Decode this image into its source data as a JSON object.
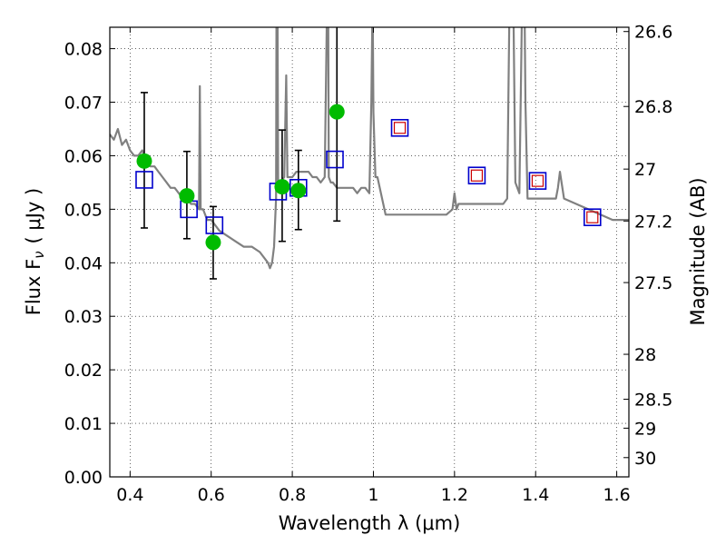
{
  "chart_data": {
    "type": "scatter",
    "xlabel": "Wavelength  λ (μm)",
    "ylabel": "Flux  F",
    "ylabel_sub": "ν",
    "ylabel_unit": "( μJy )",
    "y2label": "Magnitude (AB)",
    "xlim": [
      0.35,
      1.63
    ],
    "ylim": [
      0.0,
      0.084
    ],
    "grid": true,
    "x_ticks": [
      {
        "value": 0.4,
        "label": "0.4"
      },
      {
        "value": 0.6,
        "label": "0.6"
      },
      {
        "value": 0.8,
        "label": "0.8"
      },
      {
        "value": 1.0,
        "label": "1"
      },
      {
        "value": 1.2,
        "label": "1.2"
      },
      {
        "value": 1.4,
        "label": "1.4"
      },
      {
        "value": 1.6,
        "label": "1.6"
      }
    ],
    "y_ticks": [
      {
        "value": 0.0,
        "label": "0.00"
      },
      {
        "value": 0.01,
        "label": "0.01"
      },
      {
        "value": 0.02,
        "label": "0.02"
      },
      {
        "value": 0.03,
        "label": "0.03"
      },
      {
        "value": 0.04,
        "label": "0.04"
      },
      {
        "value": 0.05,
        "label": "0.05"
      },
      {
        "value": 0.06,
        "label": "0.06"
      },
      {
        "value": 0.07,
        "label": "0.07"
      },
      {
        "value": 0.08,
        "label": "0.08"
      }
    ],
    "y2_ticks": [
      {
        "flux": 0.0832,
        "label": "26.6"
      },
      {
        "flux": 0.0692,
        "label": "26.8"
      },
      {
        "flux": 0.0575,
        "label": "27"
      },
      {
        "flux": 0.0478,
        "label": "27.2"
      },
      {
        "flux": 0.0363,
        "label": "27.5"
      },
      {
        "flux": 0.0229,
        "label": "28"
      },
      {
        "flux": 0.0145,
        "label": "28.5"
      },
      {
        "flux": 0.0091,
        "label": "29"
      },
      {
        "flux": 0.0036,
        "label": "30"
      }
    ],
    "series": [
      {
        "kind": "model_spectrum",
        "color": "#808080",
        "x": [
          0.35,
          0.36,
          0.37,
          0.38,
          0.39,
          0.4,
          0.41,
          0.42,
          0.43,
          0.44,
          0.45,
          0.46,
          0.47,
          0.48,
          0.49,
          0.5,
          0.51,
          0.52,
          0.53,
          0.54,
          0.55,
          0.56,
          0.57,
          0.572,
          0.574,
          0.58,
          0.59,
          0.6,
          0.62,
          0.64,
          0.66,
          0.68,
          0.7,
          0.72,
          0.74,
          0.745,
          0.75,
          0.755,
          0.76,
          0.762,
          0.765,
          0.768,
          0.77,
          0.78,
          0.785,
          0.788,
          0.79,
          0.8,
          0.81,
          0.82,
          0.83,
          0.84,
          0.85,
          0.86,
          0.87,
          0.88,
          0.885,
          0.888,
          0.89,
          0.895,
          0.9,
          0.91,
          0.92,
          0.93,
          0.94,
          0.95,
          0.96,
          0.97,
          0.98,
          0.99,
          0.995,
          0.998,
          1.0,
          1.005,
          1.01,
          1.03,
          1.05,
          1.07,
          1.1,
          1.12,
          1.15,
          1.18,
          1.195,
          1.2,
          1.205,
          1.21,
          1.23,
          1.26,
          1.29,
          1.32,
          1.33,
          1.335,
          1.34,
          1.345,
          1.35,
          1.36,
          1.365,
          1.37,
          1.375,
          1.38,
          1.4,
          1.43,
          1.45,
          1.455,
          1.46,
          1.47,
          1.5,
          1.53,
          1.56,
          1.59,
          1.62,
          1.63
        ],
        "y": [
          0.064,
          0.063,
          0.065,
          0.062,
          0.063,
          0.061,
          0.06,
          0.06,
          0.061,
          0.059,
          0.058,
          0.058,
          0.057,
          0.056,
          0.055,
          0.054,
          0.054,
          0.053,
          0.052,
          0.052,
          0.051,
          0.051,
          0.05,
          0.073,
          0.05,
          0.05,
          0.048,
          0.048,
          0.046,
          0.045,
          0.044,
          0.043,
          0.043,
          0.042,
          0.04,
          0.039,
          0.04,
          0.043,
          0.052,
          0.12,
          0.055,
          0.055,
          0.055,
          0.056,
          0.075,
          0.056,
          0.056,
          0.056,
          0.057,
          0.057,
          0.057,
          0.057,
          0.056,
          0.056,
          0.055,
          0.056,
          0.085,
          0.1,
          0.056,
          0.055,
          0.055,
          0.054,
          0.054,
          0.054,
          0.054,
          0.054,
          0.053,
          0.054,
          0.054,
          0.053,
          0.07,
          0.09,
          0.068,
          0.056,
          0.056,
          0.049,
          0.049,
          0.049,
          0.049,
          0.049,
          0.049,
          0.049,
          0.05,
          0.053,
          0.05,
          0.051,
          0.051,
          0.051,
          0.051,
          0.051,
          0.052,
          0.085,
          0.11,
          0.09,
          0.055,
          0.053,
          0.08,
          0.11,
          0.07,
          0.052,
          0.052,
          0.052,
          0.052,
          0.054,
          0.057,
          0.052,
          0.051,
          0.05,
          0.049,
          0.048,
          0.048,
          0.048
        ]
      },
      {
        "kind": "model_photometry",
        "marker": "square",
        "color": "#0000cc",
        "x": [
          0.435,
          0.545,
          0.608,
          0.765,
          0.815,
          0.905,
          1.065,
          1.255,
          1.405,
          1.54
        ],
        "y": [
          0.0555,
          0.05,
          0.047,
          0.0533,
          0.054,
          0.0593,
          0.0652,
          0.0563,
          0.0553,
          0.0485
        ]
      },
      {
        "kind": "model_photometry_inner",
        "marker": "square",
        "color": "#cc0000",
        "x": [
          1.065,
          1.255,
          1.405,
          1.54
        ],
        "y": [
          0.0652,
          0.0563,
          0.0553,
          0.0485
        ]
      },
      {
        "kind": "observed",
        "marker": "circle",
        "color": "#00bb00",
        "x": [
          0.435,
          0.54,
          0.605,
          0.775,
          0.815,
          0.91
        ],
        "y": [
          0.059,
          0.0525,
          0.0438,
          0.0542,
          0.0535,
          0.0682
        ],
        "err_low": [
          0.0465,
          0.0445,
          0.037,
          0.044,
          0.0462,
          0.0478
        ],
        "err_high": [
          0.0718,
          0.0608,
          0.0505,
          0.0648,
          0.061,
          0.086
        ]
      }
    ]
  }
}
